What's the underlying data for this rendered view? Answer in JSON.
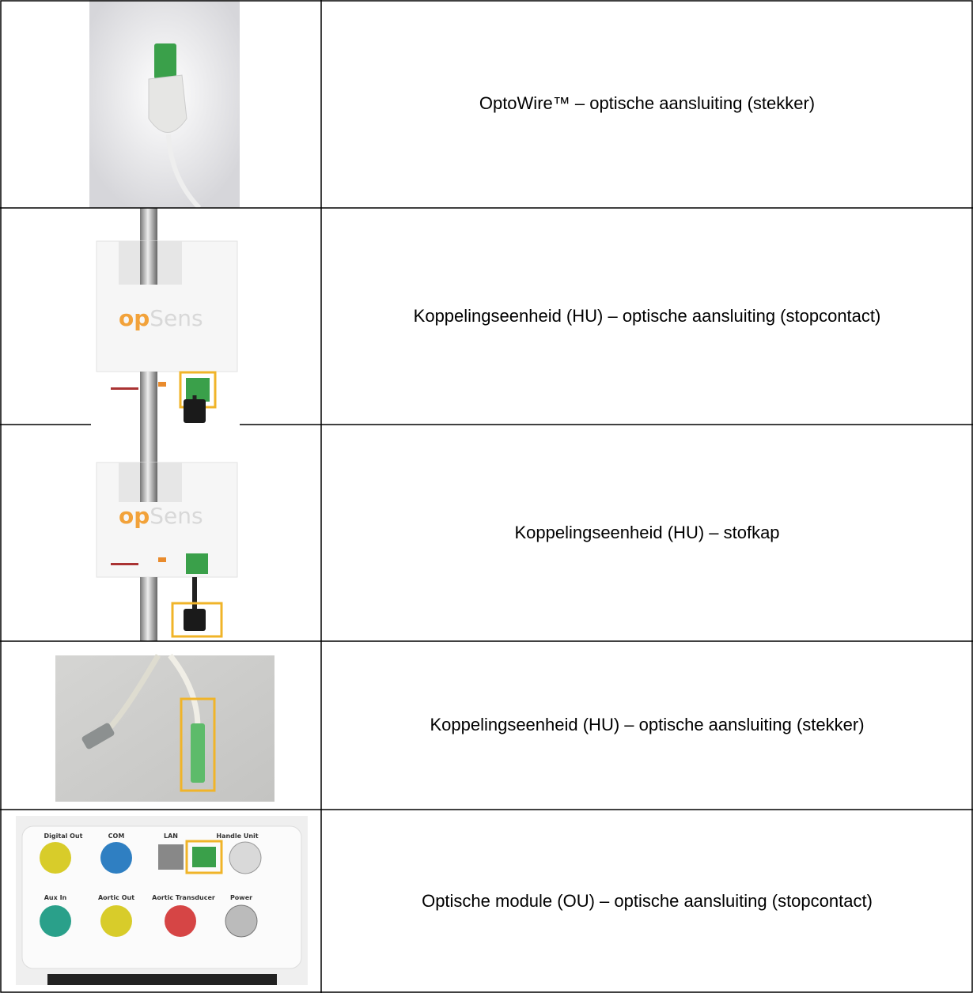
{
  "table": {
    "rows": [
      {
        "text": "OptoWire™ – optische aansluiting (stekker)"
      },
      {
        "text": "Koppelingseenheid (HU) – optische aansluiting (stopcontact)",
        "logo": [
          "op",
          "Sens"
        ]
      },
      {
        "text": "Koppelingseenheid (HU) – stofkap",
        "logo": [
          "op",
          "Sens"
        ]
      },
      {
        "text": "Koppelingseenheid (HU) – optische aansluiting (stekker)"
      },
      {
        "text": "Optische module (OU) – optische aansluiting (stopcontact)",
        "ports": [
          "Digital Out",
          "COM",
          "LAN",
          "Handle Unit",
          "Aux In",
          "Aortic Out",
          "Aortic Transducer",
          "Power"
        ]
      }
    ]
  }
}
